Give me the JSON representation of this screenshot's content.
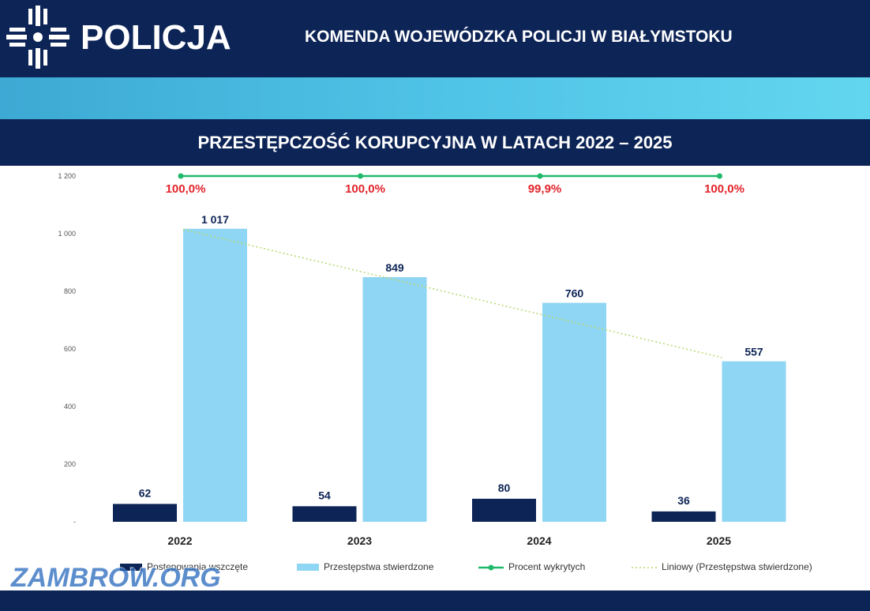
{
  "header": {
    "brand": "POLICJA",
    "organization": "KOMENDA WOJEWÓDZKA POLICJI W BIAŁYMSTOKU",
    "logo_icon": "police-star-icon"
  },
  "colors": {
    "navy": "#0d2456",
    "bar_primary": "#0d2456",
    "bar_secondary": "#8fd6f4",
    "line_detected": "#20b96b",
    "percent_label": "#e2232a",
    "trend": "#b6d96b"
  },
  "watermark": "ZAMBROW.ORG",
  "chart_data": {
    "type": "bar",
    "title": "PRZESTĘPCZOŚĆ KORUPCYJNA W LATACH 2022 – 2025",
    "categories": [
      "2022",
      "2023",
      "2024",
      "2025"
    ],
    "ylim": [
      0,
      1200
    ],
    "yticks": [
      0,
      200,
      400,
      600,
      800,
      1000,
      1200
    ],
    "ytick_labels": [
      "-",
      "200",
      "400",
      "600",
      "800",
      "1 000",
      "1 200"
    ],
    "grid": false,
    "legend_position": "bottom",
    "series": [
      {
        "name": "Postępowania wszczęte",
        "values": [
          62,
          54,
          80,
          36
        ],
        "labels": [
          "62",
          "54",
          "80",
          "36"
        ]
      },
      {
        "name": "Przestępstwa stwierdzone",
        "values": [
          1017,
          849,
          760,
          557
        ],
        "labels": [
          "1 017",
          "849",
          "760",
          "557"
        ]
      }
    ],
    "percent_series": {
      "name": "Procent wykrytych",
      "values": [
        100.0,
        100.0,
        99.9,
        100.0
      ],
      "labels": [
        "100,0%",
        "100,0%",
        "99,9%",
        "100,0%"
      ]
    },
    "trendline": {
      "name": "Liniowy (Przestępstwa stwierdzone)",
      "values": [
        1015,
        868,
        718,
        570
      ]
    }
  }
}
